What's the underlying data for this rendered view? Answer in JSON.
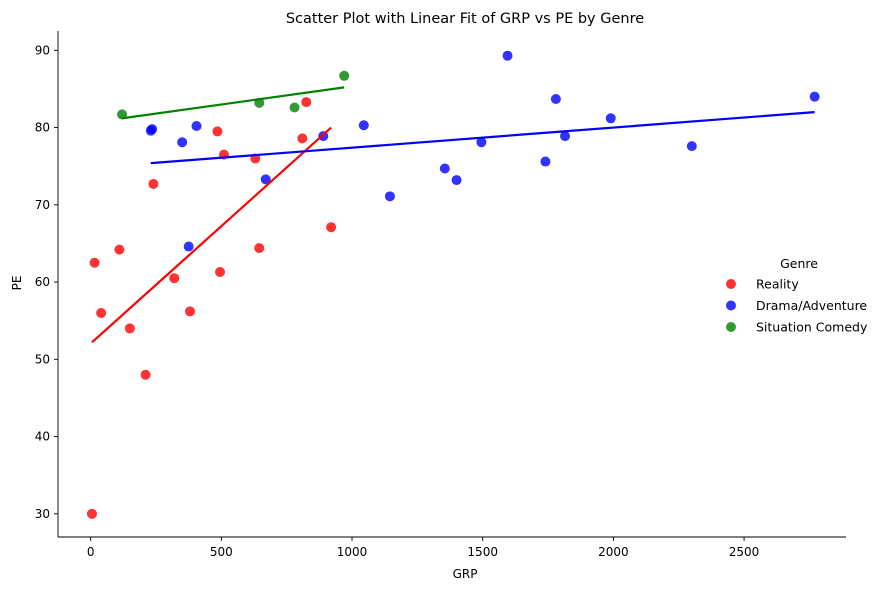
{
  "chart_data": {
    "type": "scatter",
    "title": "Scatter Plot with Linear Fit of GRP vs PE by Genre",
    "xlabel": "GRP",
    "ylabel": "PE",
    "xlim": [
      -125,
      2890
    ],
    "ylim": [
      27,
      92.5
    ],
    "xticks": [
      0,
      500,
      1000,
      1500,
      2000,
      2500
    ],
    "yticks": [
      30,
      40,
      50,
      60,
      70,
      80,
      90
    ],
    "grid": false,
    "legend": {
      "title": "Genre",
      "placement": "center-right"
    },
    "series": [
      {
        "name": "Reality",
        "color": "#ff0000",
        "points": [
          [
            5,
            30.0
          ],
          [
            15,
            62.5
          ],
          [
            40,
            56.0
          ],
          [
            110,
            64.2
          ],
          [
            150,
            54.0
          ],
          [
            210,
            48.0
          ],
          [
            240,
            72.7
          ],
          [
            320,
            60.5
          ],
          [
            380,
            56.2
          ],
          [
            485,
            79.5
          ],
          [
            495,
            61.3
          ],
          [
            510,
            76.5
          ],
          [
            630,
            76.0
          ],
          [
            645,
            64.4
          ],
          [
            810,
            78.6
          ],
          [
            825,
            83.3
          ],
          [
            920,
            67.1
          ]
        ],
        "fit": {
          "x": [
            5,
            920
          ],
          "y": [
            52.2,
            80.0
          ]
        }
      },
      {
        "name": "Drama/Adventure",
        "color": "#0000ff",
        "points": [
          [
            230,
            79.6
          ],
          [
            235,
            79.8
          ],
          [
            350,
            78.1
          ],
          [
            375,
            64.6
          ],
          [
            405,
            80.2
          ],
          [
            670,
            73.3
          ],
          [
            890,
            78.9
          ],
          [
            1045,
            80.3
          ],
          [
            1145,
            71.1
          ],
          [
            1355,
            74.7
          ],
          [
            1400,
            73.2
          ],
          [
            1495,
            78.1
          ],
          [
            1595,
            89.3
          ],
          [
            1740,
            75.6
          ],
          [
            1780,
            83.7
          ],
          [
            1815,
            78.9
          ],
          [
            1990,
            81.2
          ],
          [
            2300,
            77.6
          ],
          [
            2770,
            84.0
          ]
        ],
        "fit": {
          "x": [
            230,
            2770
          ],
          "y": [
            75.4,
            82.0
          ]
        }
      },
      {
        "name": "Situation Comedy",
        "color": "#008000",
        "points": [
          [
            120,
            81.7
          ],
          [
            645,
            83.2
          ],
          [
            780,
            82.6
          ],
          [
            970,
            86.7
          ]
        ],
        "fit": {
          "x": [
            120,
            970
          ],
          "y": [
            81.2,
            85.2
          ]
        }
      }
    ]
  }
}
